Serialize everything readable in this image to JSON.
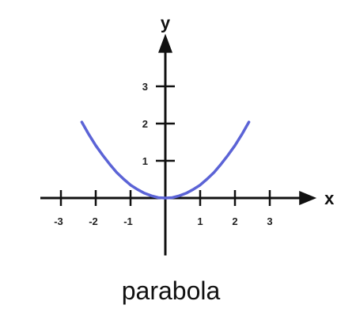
{
  "chart_data": {
    "type": "line",
    "title": "parabola",
    "xlabel": "x",
    "ylabel": "y",
    "xlim": [
      -3.5,
      4.3
    ],
    "ylim": [
      -1.5,
      4.2
    ],
    "x_ticks": [
      -3,
      -2,
      -1,
      1,
      2,
      3
    ],
    "y_ticks": [
      1,
      2,
      3
    ],
    "x_tick_labels": [
      "-3",
      "-2",
      "-1",
      "1",
      "2",
      "3"
    ],
    "y_tick_labels": [
      "1",
      "2",
      "3"
    ],
    "series": [
      {
        "function": "y = x^2 / (2*sqrt(2))",
        "color": "#5b63d6",
        "x": [
          -2.4,
          -2.2,
          -2.0,
          -1.8,
          -1.6,
          -1.4,
          -1.2,
          -1.0,
          -0.8,
          -0.6,
          -0.4,
          -0.2,
          0.0,
          0.2,
          0.4,
          0.6,
          0.8,
          1.0,
          1.2,
          1.4,
          1.6,
          1.8,
          2.0,
          2.2,
          2.4
        ],
        "y": [
          2.04,
          1.71,
          1.41,
          1.15,
          0.91,
          0.69,
          0.51,
          0.35,
          0.23,
          0.13,
          0.06,
          0.01,
          0.0,
          0.01,
          0.06,
          0.13,
          0.23,
          0.35,
          0.51,
          0.69,
          0.91,
          1.15,
          1.41,
          1.71,
          2.04
        ]
      }
    ],
    "grid": false,
    "axis_color": "#111111"
  }
}
